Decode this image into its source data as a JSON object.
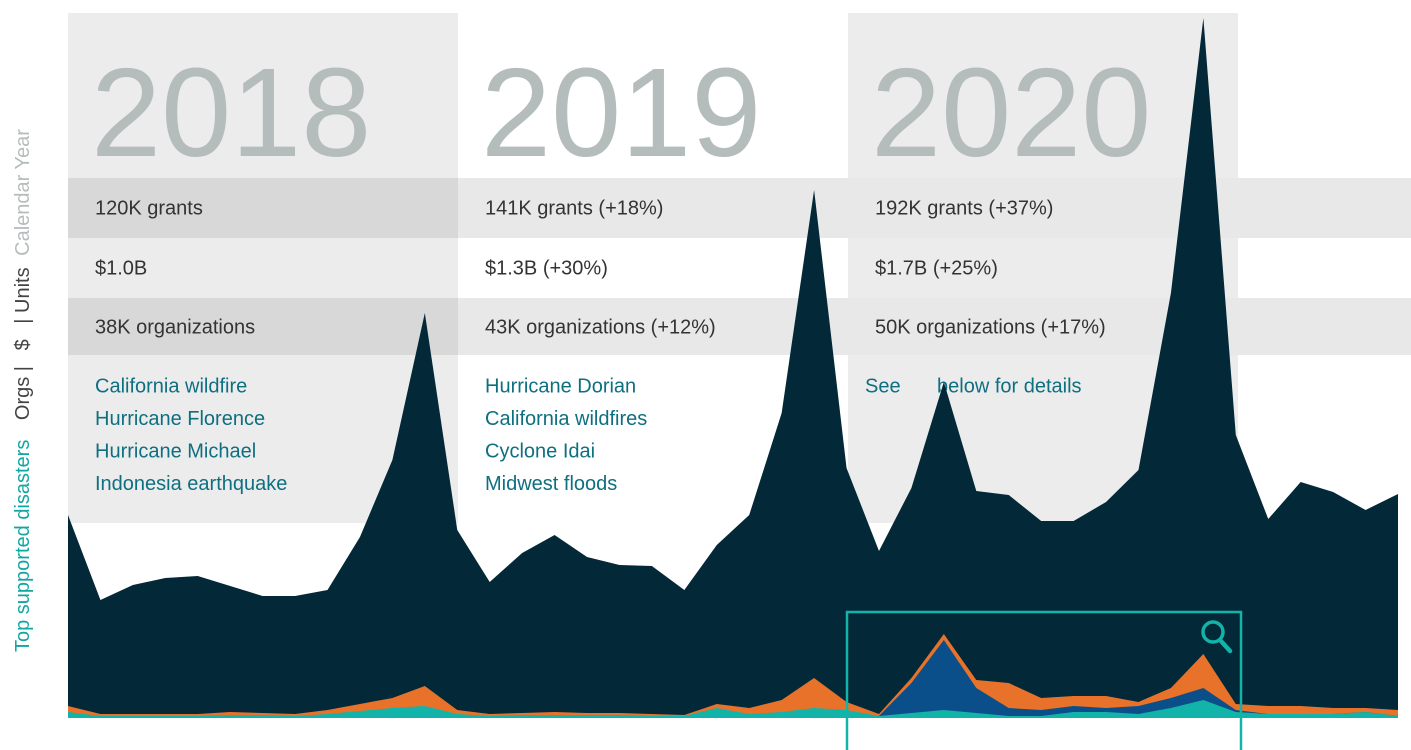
{
  "sidebar": {
    "items": [
      "Top supported disasters",
      "Orgs",
      "$",
      "Units",
      "Calendar Year"
    ],
    "separator": "|"
  },
  "panels": [
    {
      "year": "2018",
      "grants": "120K grants",
      "amount": "$1.0B",
      "orgs": "38K organizations",
      "disasters": [
        "California wildfire",
        "Hurricane Florence",
        "Hurricane Michael",
        "Indonesia earthquake"
      ]
    },
    {
      "year": "2019",
      "grants": "141K grants (+18%)",
      "amount": "$1.3B (+30%)",
      "orgs": "43K organizations (+12%)",
      "disasters": [
        "Hurricane Dorian",
        "California wildfires",
        "Cyclone Idai",
        "Midwest floods"
      ]
    },
    {
      "year": "2020",
      "grants": "192K grants (+37%)",
      "amount": "$1.7B (+25%)",
      "orgs": "50K organizations (+17%)",
      "disasters": [
        "See",
        "below for details"
      ]
    }
  ],
  "chart_data": {
    "type": "area",
    "ylim": [
      0,
      700
    ],
    "series": [
      {
        "color": "#032838",
        "values": [
          203,
          118,
          133,
          140,
          142,
          132,
          122,
          122,
          128,
          181,
          258,
          405,
          188,
          136,
          165,
          183,
          161,
          153,
          152,
          128,
          173,
          203,
          305,
          528,
          250,
          167,
          230,
          336,
          227,
          223,
          197,
          197,
          216,
          248,
          425,
          700,
          283,
          199,
          236,
          226,
          208,
          224
        ]
      },
      {
        "color": "#e8722a",
        "values": [
          12,
          4,
          4,
          4,
          4,
          6,
          5,
          4,
          8,
          14,
          20,
          32,
          8,
          4,
          5,
          6,
          5,
          5,
          4,
          3,
          14,
          10,
          18,
          40,
          16,
          4,
          40,
          84,
          38,
          35,
          20,
          22,
          22,
          16,
          30,
          64,
          14,
          12,
          12,
          10,
          10,
          8
        ]
      },
      {
        "color": "#0b4f8a",
        "values": [
          2,
          2,
          2,
          2,
          2,
          2,
          2,
          2,
          2,
          2,
          2,
          2,
          2,
          2,
          2,
          2,
          2,
          2,
          2,
          2,
          2,
          2,
          2,
          2,
          2,
          2,
          35,
          78,
          30,
          10,
          8,
          12,
          10,
          12,
          20,
          30,
          8,
          4,
          4,
          4,
          6,
          2
        ]
      },
      {
        "color": "#12b3a8",
        "values": [
          6,
          2,
          2,
          2,
          2,
          3,
          3,
          2,
          4,
          7,
          10,
          12,
          4,
          2,
          3,
          3,
          3,
          3,
          2,
          2,
          10,
          4,
          6,
          10,
          8,
          2,
          5,
          8,
          5,
          2,
          2,
          6,
          6,
          4,
          10,
          18,
          6,
          4,
          4,
          4,
          6,
          2
        ]
      }
    ]
  }
}
